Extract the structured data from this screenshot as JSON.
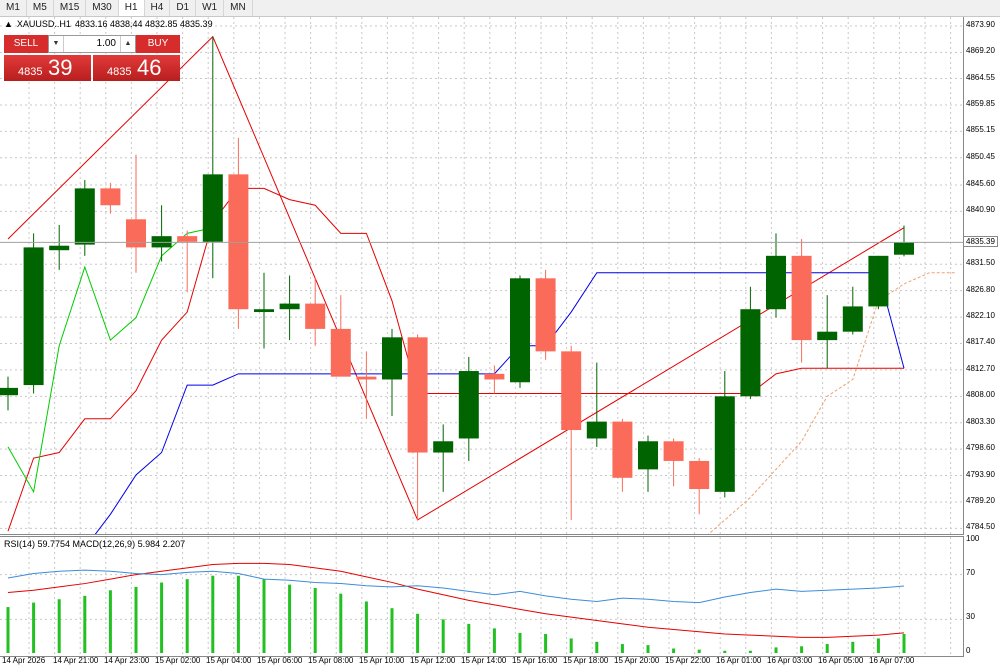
{
  "timeframes": [
    "M1",
    "M5",
    "M15",
    "M30",
    "H1",
    "H4",
    "D1",
    "W1",
    "MN"
  ],
  "active_timeframe": "H1",
  "symbol": {
    "name": "XAUUSD..H1",
    "ohlc": "4833.16 4838.44 4832.85 4835.39"
  },
  "trade_panel": {
    "sell_label": "SELL",
    "buy_label": "BUY",
    "lot": "1.00",
    "bid_prefix": "4835",
    "bid_big": "39",
    "ask_prefix": "4835",
    "ask_big": "46"
  },
  "price_axis": [
    "4873.90",
    "4869.20",
    "4864.55",
    "4859.85",
    "4855.15",
    "4850.45",
    "4845.60",
    "4840.90",
    "4835.39",
    "4831.50",
    "4826.80",
    "4822.10",
    "4817.40",
    "4812.70",
    "4808.00",
    "4803.30",
    "4798.60",
    "4793.90",
    "4789.20",
    "4784.50"
  ],
  "current_price": "4835.39",
  "indicator": {
    "title": "RSI(14) 59.7754  MACD(12,26,9) 5.984 2.207",
    "levels": [
      "100",
      "70",
      "30",
      "0"
    ]
  },
  "time_labels": [
    "14 Apr 2026",
    "14 Apr 21:00",
    "14 Apr 23:00",
    "15 Apr 02:00",
    "15 Apr 04:00",
    "15 Apr 06:00",
    "15 Apr 08:00",
    "15 Apr 10:00",
    "15 Apr 12:00",
    "15 Apr 14:00",
    "15 Apr 16:00",
    "15 Apr 18:00",
    "15 Apr 20:00",
    "15 Apr 22:00",
    "16 Apr 01:00",
    "16 Apr 03:00",
    "16 Apr 05:00",
    "16 Apr 07:00"
  ],
  "chart_data": {
    "type": "candlestick",
    "colors": {
      "up": "#006400",
      "down": "#fa6b5a",
      "grid": "#c8c8c8"
    },
    "candles": [
      {
        "o": 4808.2,
        "h": 4811.5,
        "l": 4805.5,
        "c": 4809.5
      },
      {
        "o": 4810.0,
        "h": 4837.0,
        "l": 4808.5,
        "c": 4834.5
      },
      {
        "o": 4834.0,
        "h": 4838.5,
        "l": 4830.5,
        "c": 4834.8
      },
      {
        "o": 4835.0,
        "h": 4846.5,
        "l": 4833.0,
        "c": 4845.0
      },
      {
        "o": 4845.0,
        "h": 4846.0,
        "l": 4840.5,
        "c": 4842.0
      },
      {
        "o": 4839.5,
        "h": 4851.0,
        "l": 4830.0,
        "c": 4834.5
      },
      {
        "o": 4834.5,
        "h": 4842.0,
        "l": 4832.0,
        "c": 4836.5
      },
      {
        "o": 4836.5,
        "h": 4837.5,
        "l": 4826.5,
        "c": 4835.5
      },
      {
        "o": 4835.5,
        "h": 4872.0,
        "l": 4829.0,
        "c": 4847.5
      },
      {
        "o": 4847.5,
        "h": 4854.0,
        "l": 4820.0,
        "c": 4823.5
      },
      {
        "o": 4823.0,
        "h": 4830.0,
        "l": 4816.5,
        "c": 4823.5
      },
      {
        "o": 4823.5,
        "h": 4829.5,
        "l": 4818.0,
        "c": 4824.5
      },
      {
        "o": 4824.5,
        "h": 4829.0,
        "l": 4817.0,
        "c": 4820.0
      },
      {
        "o": 4820.0,
        "h": 4826.0,
        "l": 4812.0,
        "c": 4811.5
      },
      {
        "o": 4811.5,
        "h": 4816.0,
        "l": 4804.0,
        "c": 4811.0
      },
      {
        "o": 4811.0,
        "h": 4820.0,
        "l": 4804.5,
        "c": 4818.5
      },
      {
        "o": 4818.5,
        "h": 4819.0,
        "l": 4786.0,
        "c": 4798.0
      },
      {
        "o": 4798.0,
        "h": 4803.0,
        "l": 4791.0,
        "c": 4800.0
      },
      {
        "o": 4800.5,
        "h": 4815.0,
        "l": 4796.5,
        "c": 4812.5
      },
      {
        "o": 4812.0,
        "h": 4813.5,
        "l": 4808.5,
        "c": 4811.0
      },
      {
        "o": 4810.5,
        "h": 4829.5,
        "l": 4809.5,
        "c": 4829.0
      },
      {
        "o": 4829.0,
        "h": 4830.5,
        "l": 4814.5,
        "c": 4816.0
      },
      {
        "o": 4816.0,
        "h": 4817.0,
        "l": 4786.0,
        "c": 4802.0
      },
      {
        "o": 4800.5,
        "h": 4814.0,
        "l": 4799.0,
        "c": 4803.5
      },
      {
        "o": 4803.5,
        "h": 4804.0,
        "l": 4791.0,
        "c": 4793.5
      },
      {
        "o": 4795.0,
        "h": 4801.0,
        "l": 4791.0,
        "c": 4800.0
      },
      {
        "o": 4800.0,
        "h": 4800.5,
        "l": 4792.0,
        "c": 4796.5
      },
      {
        "o": 4796.5,
        "h": 4797.0,
        "l": 4787.0,
        "c": 4791.5
      },
      {
        "o": 4791.0,
        "h": 4812.5,
        "l": 4790.0,
        "c": 4808.0
      },
      {
        "o": 4808.0,
        "h": 4827.5,
        "l": 4807.5,
        "c": 4823.5
      },
      {
        "o": 4823.5,
        "h": 4837.0,
        "l": 4822.0,
        "c": 4833.0
      },
      {
        "o": 4833.0,
        "h": 4836.0,
        "l": 4814.0,
        "c": 4818.0
      },
      {
        "o": 4818.0,
        "h": 4826.0,
        "l": 4813.0,
        "c": 4819.5
      },
      {
        "o": 4819.5,
        "h": 4827.5,
        "l": 4819.0,
        "c": 4824.0
      },
      {
        "o": 4824.0,
        "h": 4833.0,
        "l": 4823.5,
        "c": 4833.0
      },
      {
        "o": 4833.2,
        "h": 4838.4,
        "l": 4832.9,
        "c": 4835.4
      }
    ],
    "lines": [
      {
        "color": "#e60000",
        "values": [
          4836,
          null,
          null,
          null,
          null,
          null,
          null,
          null,
          4872,
          null,
          null,
          null,
          null,
          null,
          null,
          null,
          4786,
          null,
          null,
          null,
          null,
          null,
          null,
          null,
          null,
          null,
          null,
          null,
          null,
          null,
          null,
          null,
          null,
          null,
          null,
          4838
        ]
      },
      {
        "color": "#e60000",
        "values": [
          4784,
          4797,
          4798,
          4804,
          4804,
          4809,
          4818,
          4823,
          4839,
          4845,
          4845,
          4843,
          4842,
          4837,
          4837,
          4825,
          4808.5,
          4808.5,
          4808.5,
          4808.5,
          4808.5,
          4808.5,
          4808.5,
          4808.5,
          4808.5,
          4808.5,
          4808.5,
          4808.5,
          4808.5,
          4808.5,
          4812,
          4813,
          4813,
          4813,
          4813,
          4813
        ]
      },
      {
        "color": "#0000e6",
        "values": [
          4760,
          4770,
          4781,
          4781,
          4787,
          4794,
          4798,
          4810,
          4810,
          4812,
          4812,
          4812,
          4812,
          4812,
          4812,
          4812,
          4812,
          4812,
          4812,
          4812,
          4817,
          4817,
          4823,
          4830,
          4830,
          4830,
          4830,
          4830,
          4830,
          4830,
          4830,
          4830,
          4830,
          4830,
          4830,
          4813
        ]
      },
      {
        "color": "#00cc00",
        "values": [
          4799,
          4791,
          4817,
          4831,
          4818,
          4822,
          4833,
          4837,
          4838
        ]
      },
      {
        "color": "#f0a070",
        "dash": true,
        "values": [
          null,
          null,
          null,
          null,
          null,
          null,
          null,
          null,
          null,
          null,
          null,
          null,
          null,
          null,
          null,
          null,
          null,
          null,
          null,
          null,
          null,
          null,
          null,
          null,
          null,
          null,
          null,
          4782,
          4786,
          4790,
          4795,
          4800,
          4808,
          4811,
          4825,
          4828,
          4830,
          4830
        ]
      }
    ],
    "rsi": [
      67,
      71,
      73,
      74,
      73,
      71,
      70,
      72,
      73,
      71,
      66,
      65,
      63,
      62,
      60,
      59,
      60,
      58,
      55,
      52,
      55,
      51,
      48,
      46,
      49,
      48,
      46,
      45,
      50,
      54,
      57,
      55,
      56,
      57,
      58,
      59.8
    ],
    "macd_line": [
      54,
      56,
      59,
      62,
      66,
      70,
      73,
      76,
      79,
      80,
      80,
      79,
      76,
      73,
      68,
      63,
      57,
      52,
      47,
      43,
      39,
      35,
      32,
      29,
      26,
      23,
      21,
      19,
      17,
      16,
      15,
      14,
      14,
      15,
      16,
      18
    ],
    "macd_hist": [
      41,
      45,
      48,
      51,
      56,
      59,
      63,
      66,
      69,
      69,
      66,
      61,
      58,
      53,
      46,
      40,
      35,
      30,
      26,
      22,
      18,
      17,
      13,
      10,
      8,
      7,
      4,
      3,
      2,
      2,
      5,
      6,
      8,
      10,
      13,
      17
    ]
  }
}
